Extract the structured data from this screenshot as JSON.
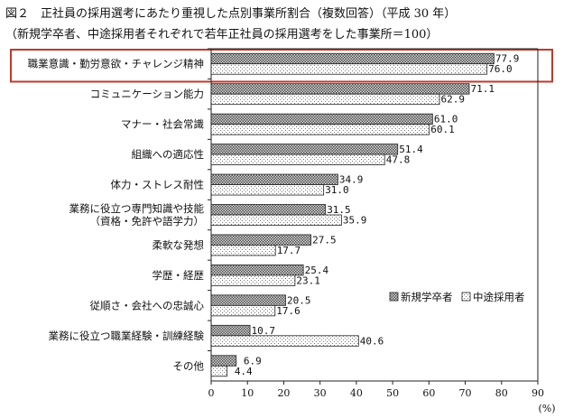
{
  "title_line1": "図２　正社員の採用選考にあたり重視した点別事業所割合（複数回答）（平成 30 年）",
  "title_line2": "（新規学卒者、中途採用者それぞれで若年正社員の採用選考をした事業所＝100）",
  "chart_data": {
    "type": "bar",
    "orientation": "horizontal",
    "categories": [
      [
        "職業意識・勤労意欲・チャレンジ精神"
      ],
      [
        "コミュニケーション能力"
      ],
      [
        "マナー・社会常識"
      ],
      [
        "組織への適応性"
      ],
      [
        "体力・ストレス耐性"
      ],
      [
        "業務に役立つ専門知識や技能",
        "（資格・免許や語学力）"
      ],
      [
        "柔軟な発想"
      ],
      [
        "学歴・経歴"
      ],
      [
        "従順さ・会社への忠誠心"
      ],
      [
        "業務に役立つ職業経験・訓練経験"
      ],
      [
        "その他"
      ]
    ],
    "series": [
      {
        "name": "新規学卒者",
        "values": [
          77.9,
          71.1,
          61.0,
          51.4,
          34.9,
          31.5,
          27.5,
          25.4,
          20.5,
          10.7,
          6.9
        ],
        "labels": [
          "77.9",
          "71.1",
          "61.0",
          "51.4",
          "34.9",
          "31.5",
          "27.5",
          "25.4",
          "20.5",
          "10.7",
          "6.9"
        ]
      },
      {
        "name": "中途採用者",
        "values": [
          76.0,
          62.9,
          60.1,
          47.8,
          31.0,
          35.9,
          17.7,
          23.1,
          17.6,
          40.6,
          4.4
        ],
        "labels": [
          "76.0",
          "62.9",
          "60.1",
          "47.8",
          "31.0",
          "35.9",
          "17.7",
          "23.1",
          "17.6",
          "40.6",
          "4.4"
        ]
      }
    ],
    "xlim": [
      0,
      90
    ],
    "xticks": [
      "0",
      "10",
      "20",
      "30",
      "40",
      "50",
      "60",
      "70",
      "80",
      "90"
    ],
    "xunit": "(%)",
    "highlight_category_index": 0,
    "highlight_color": "#c0392b",
    "legend_position": "right"
  }
}
